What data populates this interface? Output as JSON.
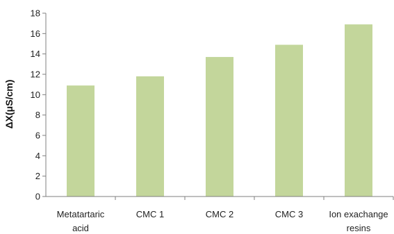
{
  "chart_data": {
    "type": "bar",
    "categories": [
      [
        "Metatartaric",
        "acid"
      ],
      [
        "CMC 1"
      ],
      [
        "CMC 2"
      ],
      [
        "CMC 3"
      ],
      [
        "Ion exachange",
        "resins"
      ]
    ],
    "values": [
      10.9,
      11.8,
      13.7,
      14.9,
      16.9
    ],
    "title": "",
    "xlabel": "",
    "ylabel": "ΔX(μS/cm)",
    "ylim": [
      0,
      18
    ],
    "yticks": [
      "0",
      "2",
      "4",
      "6",
      "8",
      "10",
      "12",
      "14",
      "16",
      "18"
    ],
    "grid": false,
    "legend": "none",
    "colors": {
      "bar": "#c3d69b",
      "axis": "#7f7f7f"
    }
  }
}
